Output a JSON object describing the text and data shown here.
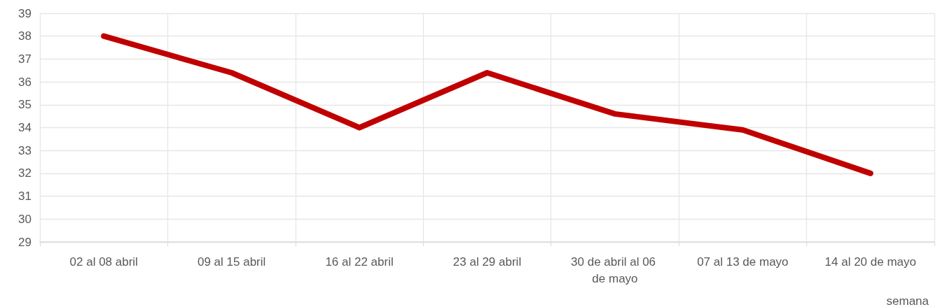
{
  "chart_data": {
    "type": "line",
    "xlabel": "semana",
    "categories": [
      "02 al 08 abril",
      "09 al 15 abril",
      "16 al 22 abril",
      "23 al 29 abril",
      "30 de abril al 06 de mayo",
      "07 al 13 de mayo",
      "14 al 20 de mayo"
    ],
    "series": [
      {
        "color": "#c00000",
        "values": [
          38.0,
          36.4,
          34.0,
          36.4,
          34.6,
          33.9,
          32.0
        ]
      }
    ],
    "ylim": [
      29,
      39
    ],
    "yticks": [
      29,
      30,
      31,
      32,
      33,
      34,
      35,
      36,
      37,
      38,
      39
    ],
    "grid": true,
    "marker": "none",
    "line_style": "solid"
  }
}
